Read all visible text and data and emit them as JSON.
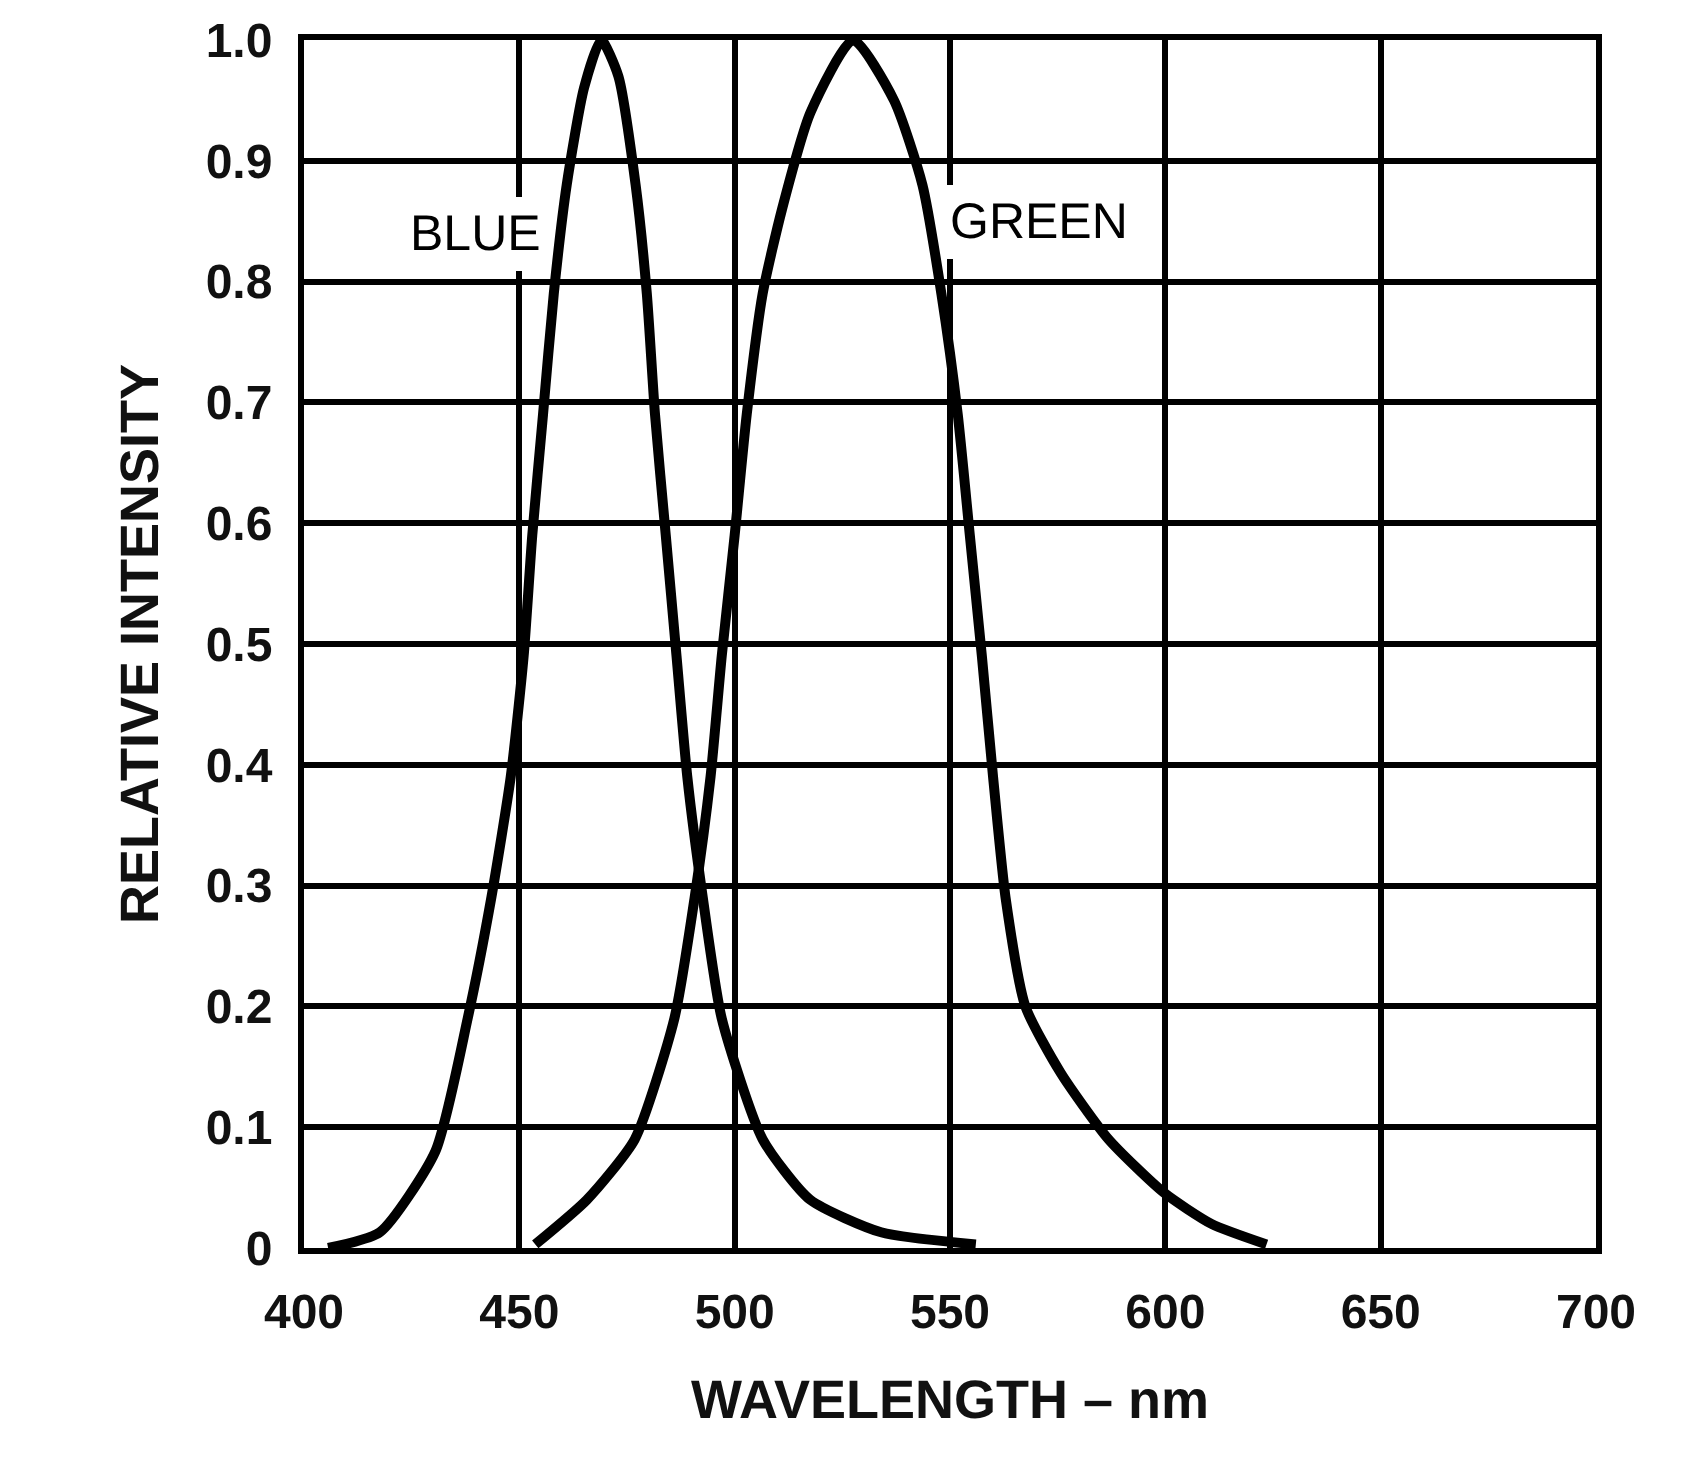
{
  "chart_data": {
    "type": "line",
    "xlabel": "WAVELENGTH – nm",
    "ylabel": "RELATIVE INTENSITY",
    "xlim": [
      400,
      700
    ],
    "ylim": [
      0,
      1
    ],
    "xticks": [
      400,
      450,
      500,
      550,
      600,
      650,
      700
    ],
    "yticks": [
      0,
      0.1,
      0.2,
      0.3,
      0.4,
      0.5,
      0.6,
      0.7,
      0.8,
      0.9,
      {
        "value": 1,
        "label": "1.0"
      }
    ],
    "grid": true,
    "legend": false,
    "line_style": "solid",
    "series": [
      {
        "name": "BLUE",
        "color": "#000000",
        "x": [
          405.6,
          417.6,
          430.5,
          438,
          443.5,
          448,
          451,
          453,
          455.5,
          458,
          461,
          465,
          469,
          473,
          477,
          479.6,
          481.5,
          484,
          486.5,
          489,
          492.6,
          497,
          506.5,
          517.5,
          534,
          556
        ],
        "values": [
          0,
          0.013,
          0.08,
          0.19,
          0.29,
          0.39,
          0.49,
          0.59,
          0.69,
          0.79,
          0.88,
          0.96,
          1,
          0.97,
          0.88,
          0.79,
          0.69,
          0.59,
          0.49,
          0.39,
          0.29,
          0.19,
          0.09,
          0.04,
          0.013,
          0.003
        ]
      },
      {
        "name": "GREEN",
        "color": "#000000",
        "x": [
          453.7,
          465.7,
          476.8,
          486,
          490.7,
          494.4,
          497,
          500,
          502.8,
          506.5,
          511,
          517.6,
          527.5,
          537,
          543.6,
          548,
          551.8,
          554.6,
          557.4,
          560,
          562.9,
          567.5,
          575.7,
          586.8,
          599.6,
          610.7,
          623.5
        ],
        "values": [
          0.003,
          0.04,
          0.09,
          0.19,
          0.29,
          0.39,
          0.49,
          0.59,
          0.69,
          0.79,
          0.86,
          0.94,
          1,
          0.95,
          0.88,
          0.79,
          0.69,
          0.59,
          0.49,
          0.39,
          0.29,
          0.2,
          0.145,
          0.09,
          0.046,
          0.02,
          0.003
        ]
      }
    ]
  }
}
